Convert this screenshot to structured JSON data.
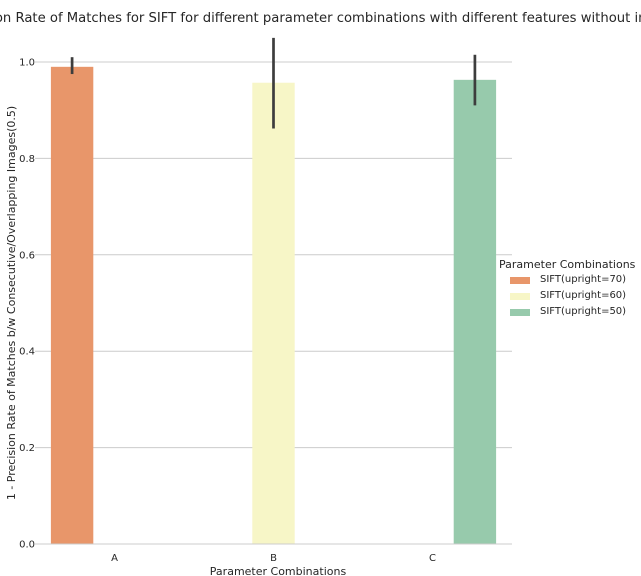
{
  "chart_data": {
    "type": "bar",
    "title": "Precision Rate of Matches for SIFT for different parameter combinations with different features without images",
    "title_visible": "ision Rate of Matches for SIFT for different parameter combinations with different features without img",
    "xlabel": "Parameter Combinations",
    "ylabel": "1 - Precision Rate of Matches b/w Consecutive/Overlapping Images(0.5)",
    "categories": [
      "A",
      "B",
      "C"
    ],
    "ylim": [
      0,
      1.0
    ],
    "yticks": [
      0.0,
      0.2,
      0.4,
      0.6,
      0.8,
      1.0
    ],
    "ytick_labels": [
      "0.0",
      "0.2",
      "0.4",
      "0.6",
      "0.8",
      "1.0"
    ],
    "grid": "horizontal",
    "legend": {
      "title": "Parameter Combinations",
      "placement": "center-right outside"
    },
    "series": [
      {
        "name": "SIFT(upright=70)",
        "color": "#e8966a",
        "values": [
          0.99,
          null,
          null
        ],
        "error": [
          [
            0.975,
            1.01
          ],
          null,
          null
        ]
      },
      {
        "name": "SIFT(upright=60)",
        "color": "#f7f6c7",
        "values": [
          null,
          0.957,
          null
        ],
        "error": [
          null,
          [
            0.862,
            1.05
          ],
          null
        ]
      },
      {
        "name": "SIFT(upright=50)",
        "color": "#97caac",
        "values": [
          null,
          null,
          0.963
        ],
        "error": [
          null,
          null,
          [
            0.91,
            1.015
          ]
        ]
      }
    ]
  }
}
